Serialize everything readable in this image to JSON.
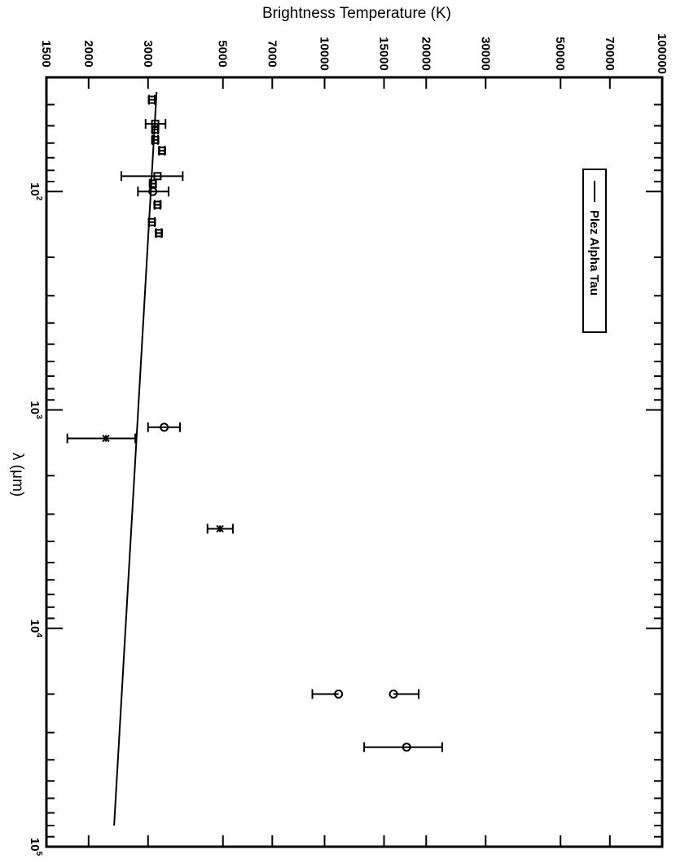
{
  "chart_data": {
    "type": "scatter",
    "orientation": "rotated-90",
    "title": "",
    "xlabel": "λ (μm)",
    "ylabel": "Brightness Temperature (K)",
    "xscale": "log",
    "yscale": "log",
    "xlim": [
      30,
      100000
    ],
    "ylim": [
      1500,
      100000
    ],
    "x_ticks": [
      {
        "value": 100,
        "base": "10",
        "exp": "2"
      },
      {
        "value": 1000,
        "base": "10",
        "exp": "3"
      },
      {
        "value": 10000,
        "base": "10",
        "exp": "4"
      },
      {
        "value": 100000,
        "base": "10",
        "exp": "5"
      }
    ],
    "y_ticks": [
      {
        "value": 1500,
        "label": "1500"
      },
      {
        "value": 2000,
        "label": "2000"
      },
      {
        "value": 3000,
        "label": "3000"
      },
      {
        "value": 5000,
        "label": "5000"
      },
      {
        "value": 7000,
        "label": "7000"
      },
      {
        "value": 10000,
        "label": "10000"
      },
      {
        "value": 15000,
        "label": "15000"
      },
      {
        "value": 20000,
        "label": "20000"
      },
      {
        "value": 30000,
        "label": "30000"
      },
      {
        "value": 50000,
        "label": "50000"
      },
      {
        "value": 70000,
        "label": "70000"
      },
      {
        "value": 100000,
        "label": "100000"
      }
    ],
    "legend": {
      "position": "top-right",
      "entries": [
        {
          "label": "Plez Alpha Tau",
          "style": "line"
        }
      ]
    },
    "model_line": {
      "x": [
        35,
        80000
      ],
      "y": [
        3180,
        2380
      ]
    },
    "points": [
      {
        "x": 38,
        "y": 3080,
        "err_low": 60,
        "err_high": 60,
        "marker": "square"
      },
      {
        "x": 49,
        "y": 3150,
        "err_low": 200,
        "err_high": 230,
        "marker": "square"
      },
      {
        "x": 52,
        "y": 3150,
        "err_low": 60,
        "err_high": 60,
        "marker": "square"
      },
      {
        "x": 58,
        "y": 3150,
        "err_low": 60,
        "err_high": 60,
        "marker": "square"
      },
      {
        "x": 65,
        "y": 3300,
        "err_low": 60,
        "err_high": 60,
        "marker": "square"
      },
      {
        "x": 85,
        "y": 3200,
        "err_low": 700,
        "err_high": 600,
        "marker": "square"
      },
      {
        "x": 92,
        "y": 3100,
        "err_low": 60,
        "err_high": 60,
        "marker": "square"
      },
      {
        "x": 100,
        "y": 3100,
        "err_low": 300,
        "err_high": 350,
        "marker": "circle"
      },
      {
        "x": 115,
        "y": 3200,
        "err_low": 60,
        "err_high": 60,
        "marker": "square"
      },
      {
        "x": 138,
        "y": 3080,
        "err_low": 60,
        "err_high": 60,
        "marker": "square"
      },
      {
        "x": 155,
        "y": 3230,
        "err_low": 60,
        "err_high": 60,
        "marker": "square"
      },
      {
        "x": 1200,
        "y": 3350,
        "err_low": 350,
        "err_high": 380,
        "marker": "circle"
      },
      {
        "x": 1350,
        "y": 2250,
        "err_low": 520,
        "err_high": 500,
        "marker": "asterisk"
      },
      {
        "x": 3500,
        "y": 4900,
        "err_low": 400,
        "err_high": 450,
        "marker": "asterisk"
      },
      {
        "x": 20000,
        "y": 11000,
        "err_low": 1800,
        "err_high": 0,
        "marker": "circle"
      },
      {
        "x": 20000,
        "y": 16000,
        "err_low": 0,
        "err_high": 3000,
        "marker": "circle"
      },
      {
        "x": 35000,
        "y": 17500,
        "err_low": 4400,
        "err_high": 4800,
        "marker": "circle"
      }
    ]
  }
}
